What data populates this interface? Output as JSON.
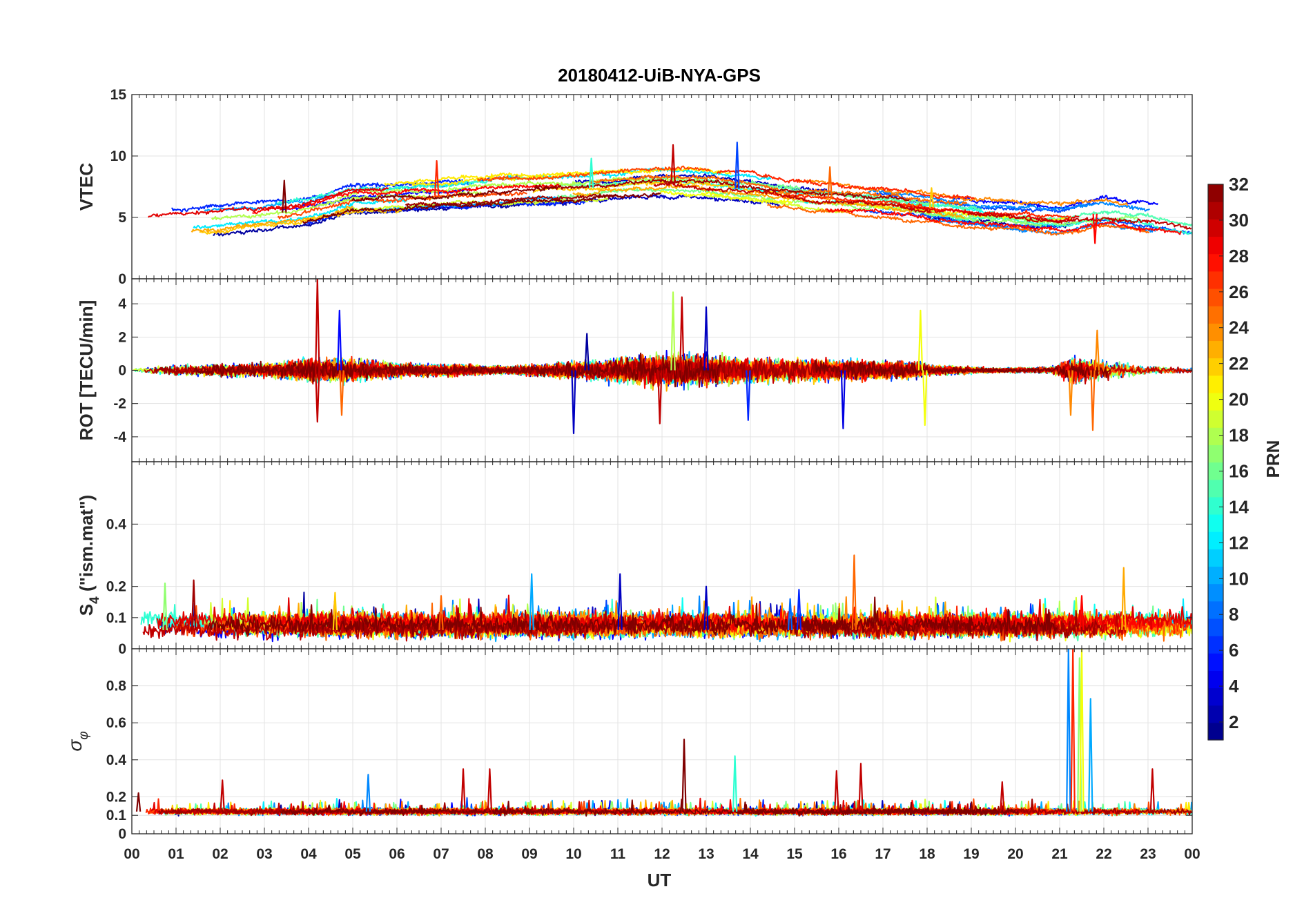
{
  "title": "20180412-UiB-NYA-GPS",
  "chart_data": [
    {
      "type": "line",
      "id": "vtec",
      "ylabel": "VTEC",
      "ylim": [
        0,
        15
      ],
      "yticks": [
        "0",
        "5",
        "10",
        "15"
      ],
      "ytick_values": [
        0,
        5,
        10,
        15
      ],
      "grid": true,
      "baseline": 4.8,
      "level_profile": [
        {
          "ut": 0,
          "v": 4.3
        },
        {
          "ut": 2,
          "v": 4.8
        },
        {
          "ut": 4,
          "v": 5.6
        },
        {
          "ut": 5,
          "v": 6.5
        },
        {
          "ut": 7,
          "v": 6.8
        },
        {
          "ut": 8,
          "v": 7.0
        },
        {
          "ut": 10,
          "v": 7.3
        },
        {
          "ut": 12,
          "v": 7.8
        },
        {
          "ut": 13,
          "v": 7.6
        },
        {
          "ut": 15,
          "v": 6.8
        },
        {
          "ut": 17,
          "v": 6.2
        },
        {
          "ut": 19,
          "v": 5.4
        },
        {
          "ut": 21,
          "v": 4.9
        },
        {
          "ut": 22,
          "v": 5.4
        },
        {
          "ut": 23,
          "v": 5.0
        },
        {
          "ut": 24,
          "v": 4.3
        }
      ],
      "spikes": [
        {
          "ut": 3.45,
          "v": 8.0,
          "prn": 32
        },
        {
          "ut": 6.9,
          "v": 9.6,
          "prn": 27
        },
        {
          "ut": 10.4,
          "v": 9.8,
          "prn": 14
        },
        {
          "ut": 12.25,
          "v": 10.9,
          "prn": 30
        },
        {
          "ut": 13.7,
          "v": 11.1,
          "prn": 7
        },
        {
          "ut": 15.8,
          "v": 9.1,
          "prn": 25
        },
        {
          "ut": 18.1,
          "v": 7.4,
          "prn": 22
        },
        {
          "ut": 21.8,
          "v": 2.9,
          "prn": 28
        }
      ]
    },
    {
      "type": "line",
      "id": "rot",
      "ylabel": "ROT [TECU/min]",
      "ylim": [
        -5.5,
        5.5
      ],
      "yticks": [
        "-4",
        "-2",
        "0",
        "2",
        "4"
      ],
      "ytick_values": [
        -4,
        -2,
        0,
        2,
        4
      ],
      "grid": true,
      "baseline": 0,
      "noise_profile": [
        {
          "ut": 0,
          "v": 0.1
        },
        {
          "ut": 1.0,
          "v": 0.25
        },
        {
          "ut": 3.2,
          "v": 0.35
        },
        {
          "ut": 4.0,
          "v": 0.6
        },
        {
          "ut": 5.0,
          "v": 0.55
        },
        {
          "ut": 6.0,
          "v": 0.35
        },
        {
          "ut": 7.0,
          "v": 0.3
        },
        {
          "ut": 8.5,
          "v": 0.2
        },
        {
          "ut": 9.5,
          "v": 0.35
        },
        {
          "ut": 10.5,
          "v": 0.5
        },
        {
          "ut": 11.8,
          "v": 0.8
        },
        {
          "ut": 13.0,
          "v": 0.8
        },
        {
          "ut": 14.0,
          "v": 0.6
        },
        {
          "ut": 16.0,
          "v": 0.5
        },
        {
          "ut": 17.5,
          "v": 0.45
        },
        {
          "ut": 18.2,
          "v": 0.25
        },
        {
          "ut": 19.5,
          "v": 0.12
        },
        {
          "ut": 20.8,
          "v": 0.15
        },
        {
          "ut": 21.3,
          "v": 0.7
        },
        {
          "ut": 22.0,
          "v": 0.45
        },
        {
          "ut": 23.0,
          "v": 0.2
        },
        {
          "ut": 24.0,
          "v": 0.12
        }
      ],
      "spikes": [
        {
          "ut": 4.2,
          "v": 5.5,
          "prn": 30
        },
        {
          "ut": 4.2,
          "v": -3.1,
          "prn": 30
        },
        {
          "ut": 4.7,
          "v": 3.6,
          "prn": 5
        },
        {
          "ut": 4.75,
          "v": -2.7,
          "prn": 25
        },
        {
          "ut": 10.0,
          "v": -3.8,
          "prn": 3
        },
        {
          "ut": 10.3,
          "v": 2.2,
          "prn": 2
        },
        {
          "ut": 12.25,
          "v": 4.7,
          "prn": 18
        },
        {
          "ut": 11.95,
          "v": -3.2,
          "prn": 30
        },
        {
          "ut": 12.45,
          "v": 4.4,
          "prn": 30
        },
        {
          "ut": 13.0,
          "v": 3.8,
          "prn": 3
        },
        {
          "ut": 13.95,
          "v": -3.0,
          "prn": 6
        },
        {
          "ut": 16.1,
          "v": -3.5,
          "prn": 4
        },
        {
          "ut": 17.85,
          "v": 3.6,
          "prn": 20
        },
        {
          "ut": 17.95,
          "v": -3.3,
          "prn": 20
        },
        {
          "ut": 21.25,
          "v": -2.7,
          "prn": 24
        },
        {
          "ut": 21.75,
          "v": -3.6,
          "prn": 25
        },
        {
          "ut": 21.85,
          "v": 2.4,
          "prn": 24
        }
      ]
    },
    {
      "type": "line",
      "id": "s4",
      "ylabel": "S_4 (\"ism.mat\")",
      "ylabel_main": "S",
      "ylabel_sub": "4",
      "ylabel_rest": " (\"ism.mat\")",
      "ylim": [
        0,
        0.6
      ],
      "yticks": [
        "0",
        "0.1",
        "0.2",
        "0.4"
      ],
      "ytick_values": [
        0,
        0.1,
        0.2,
        0.4
      ],
      "grid": true,
      "baseline": 0.06,
      "noise_profile": [
        {
          "ut": 0,
          "v": 0.025
        },
        {
          "ut": 24,
          "v": 0.025
        }
      ],
      "spikes": [
        {
          "ut": 0.75,
          "v": 0.21,
          "prn": 17
        },
        {
          "ut": 1.4,
          "v": 0.22,
          "prn": 31
        },
        {
          "ut": 9.05,
          "v": 0.24,
          "prn": 10
        },
        {
          "ut": 11.05,
          "v": 0.24,
          "prn": 3
        },
        {
          "ut": 13.0,
          "v": 0.2,
          "prn": 3
        },
        {
          "ut": 16.35,
          "v": 0.3,
          "prn": 25
        },
        {
          "ut": 15.1,
          "v": 0.19,
          "prn": 6
        },
        {
          "ut": 21.5,
          "v": 0.17,
          "prn": 28
        },
        {
          "ut": 22.45,
          "v": 0.26,
          "prn": 23
        },
        {
          "ut": 4.6,
          "v": 0.18,
          "prn": 22
        },
        {
          "ut": 7.0,
          "v": 0.17,
          "prn": 25
        },
        {
          "ut": 14.9,
          "v": 0.16,
          "prn": 8
        }
      ]
    },
    {
      "type": "line",
      "id": "sigma",
      "ylabel": "σ_φ",
      "ylabel_main": "σ",
      "ylabel_sub": "φ",
      "ylim": [
        0,
        1
      ],
      "yticks": [
        "0",
        "0.1",
        "0.2",
        "0.4",
        "0.6",
        "0.8"
      ],
      "ytick_values": [
        0,
        0.1,
        0.2,
        0.4,
        0.6,
        0.8
      ],
      "grid": true,
      "baseline": 0.12,
      "noise_profile": [
        {
          "ut": 0,
          "v": 0.015
        },
        {
          "ut": 24,
          "v": 0.015
        }
      ],
      "spikes": [
        {
          "ut": 0.15,
          "v": 0.22,
          "prn": 32
        },
        {
          "ut": 2.05,
          "v": 0.29,
          "prn": 30
        },
        {
          "ut": 5.35,
          "v": 0.32,
          "prn": 9
        },
        {
          "ut": 7.5,
          "v": 0.35,
          "prn": 30
        },
        {
          "ut": 8.1,
          "v": 0.35,
          "prn": 30
        },
        {
          "ut": 12.5,
          "v": 0.51,
          "prn": 32
        },
        {
          "ut": 13.65,
          "v": 0.42,
          "prn": 14
        },
        {
          "ut": 15.95,
          "v": 0.34,
          "prn": 30
        },
        {
          "ut": 16.5,
          "v": 0.38,
          "prn": 30
        },
        {
          "ut": 19.7,
          "v": 0.28,
          "prn": 30
        },
        {
          "ut": 21.2,
          "v": 1.0,
          "prn": 9
        },
        {
          "ut": 21.3,
          "v": 1.0,
          "prn": 27
        },
        {
          "ut": 21.45,
          "v": 0.95,
          "prn": 17
        },
        {
          "ut": 21.5,
          "v": 1.0,
          "prn": 20
        },
        {
          "ut": 21.7,
          "v": 0.73,
          "prn": 10
        },
        {
          "ut": 23.1,
          "v": 0.35,
          "prn": 30
        }
      ]
    }
  ],
  "x_axis": {
    "label": "UT",
    "range": [
      0,
      24
    ],
    "tick_labels": [
      "00",
      "01",
      "02",
      "03",
      "04",
      "05",
      "06",
      "07",
      "08",
      "09",
      "10",
      "11",
      "12",
      "13",
      "14",
      "15",
      "16",
      "17",
      "18",
      "19",
      "20",
      "21",
      "22",
      "23",
      "00"
    ]
  },
  "colorbar": {
    "label": "PRN",
    "range": [
      1,
      32
    ],
    "tick_labels": [
      "2",
      "4",
      "6",
      "8",
      "10",
      "12",
      "14",
      "16",
      "18",
      "20",
      "22",
      "24",
      "26",
      "28",
      "30",
      "32"
    ],
    "tick_values": [
      2,
      4,
      6,
      8,
      10,
      12,
      14,
      16,
      18,
      20,
      22,
      24,
      26,
      28,
      30,
      32
    ],
    "colormap": "jet",
    "levels": 32
  },
  "series_prns": [
    2,
    3,
    5,
    6,
    7,
    9,
    10,
    12,
    13,
    14,
    15,
    16,
    17,
    18,
    19,
    20,
    21,
    22,
    23,
    24,
    25,
    26,
    27,
    28,
    29,
    30,
    31,
    32
  ]
}
